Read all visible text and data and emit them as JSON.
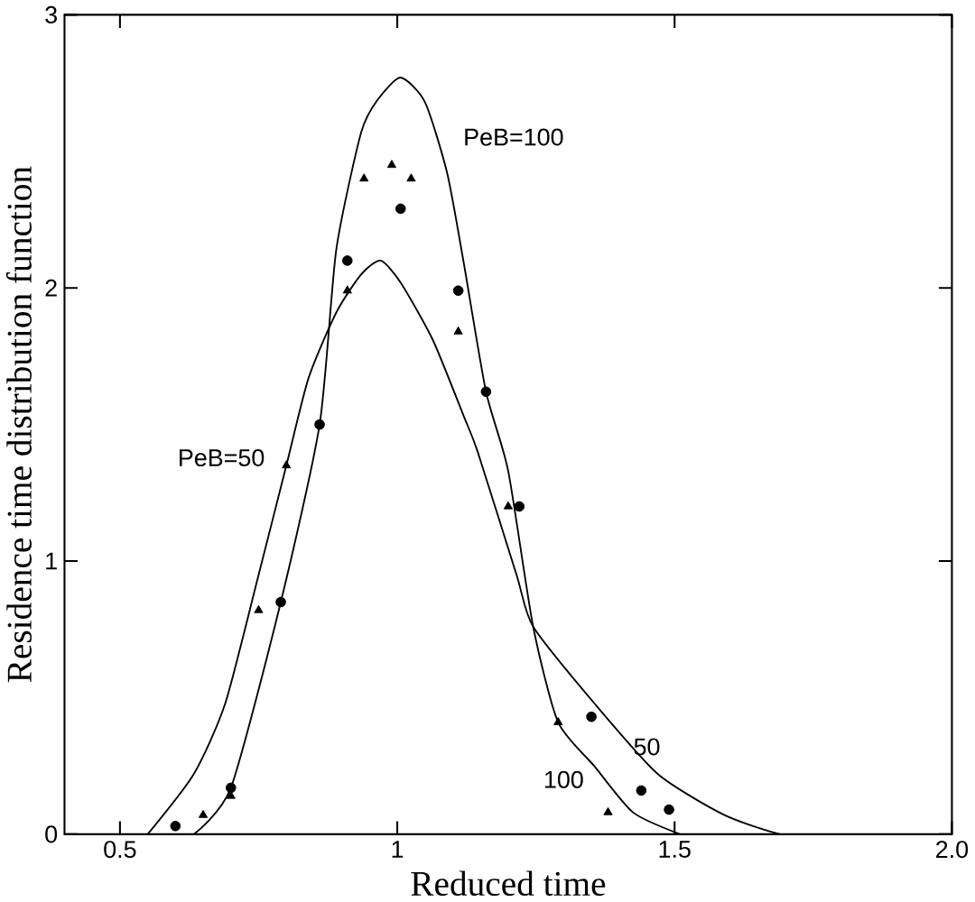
{
  "chart_data": {
    "type": "line",
    "xlabel": "Reduced time",
    "ylabel": "Residence time distribution function",
    "xlim": [
      0.4,
      2.0
    ],
    "ylim": [
      0,
      3
    ],
    "xticks": [
      0.5,
      1,
      1.5,
      {
        "value": 2,
        "label": "2.0"
      }
    ],
    "yticks": [
      0,
      1,
      2,
      3
    ],
    "grid": false,
    "series": [
      {
        "name": "PeB=100",
        "color": "#000000",
        "marker": "none",
        "x": [
          0.633,
          0.7,
          0.79,
          0.86,
          0.89,
          0.935,
          0.965,
          1.006,
          1.05,
          1.09,
          1.12,
          1.16,
          1.2,
          1.245,
          1.29,
          1.355,
          1.425,
          1.51
        ],
        "values": [
          0,
          0.17,
          0.85,
          1.5,
          2.14,
          2.57,
          2.69,
          2.77,
          2.68,
          2.42,
          2.09,
          1.62,
          1.33,
          0.76,
          0.41,
          0.25,
          0.08,
          0
        ]
      },
      {
        "name": "PeB=50",
        "color": "#000000",
        "marker": "none",
        "x": [
          0.55,
          0.633,
          0.69,
          0.75,
          0.8,
          0.84,
          0.89,
          0.935,
          0.97,
          1.006,
          1.064,
          1.12,
          1.145,
          1.215,
          1.245,
          1.355,
          1.47,
          1.59,
          1.69,
          1.74
        ],
        "values": [
          0,
          0.22,
          0.48,
          0.95,
          1.35,
          1.67,
          1.91,
          2.05,
          2.1,
          2.02,
          1.81,
          1.53,
          1.4,
          0.95,
          0.76,
          0.48,
          0.22,
          0.07,
          0,
          0
        ]
      },
      {
        "type": "scatter",
        "color": "#000000",
        "marker": "circle",
        "x": [
          0.6,
          0.7,
          0.79,
          0.86,
          0.91,
          1.006,
          1.11,
          1.16,
          1.22,
          1.35,
          1.44,
          1.49
        ],
        "values": [
          0.03,
          0.17,
          0.85,
          1.5,
          2.1,
          2.29,
          1.99,
          1.62,
          1.2,
          0.43,
          0.16,
          0.09
        ]
      },
      {
        "type": "scatter",
        "color": "#000000",
        "marker": "triangle",
        "x": [
          0.65,
          0.7,
          0.75,
          0.8,
          0.91,
          0.94,
          0.99,
          1.025,
          1.11,
          1.2,
          1.29,
          1.38
        ],
        "values": [
          0.07,
          0.14,
          0.82,
          1.35,
          1.99,
          2.4,
          2.45,
          2.4,
          1.84,
          1.2,
          0.41,
          0.08
        ]
      }
    ],
    "annotations": [
      "50",
      "100"
    ]
  }
}
